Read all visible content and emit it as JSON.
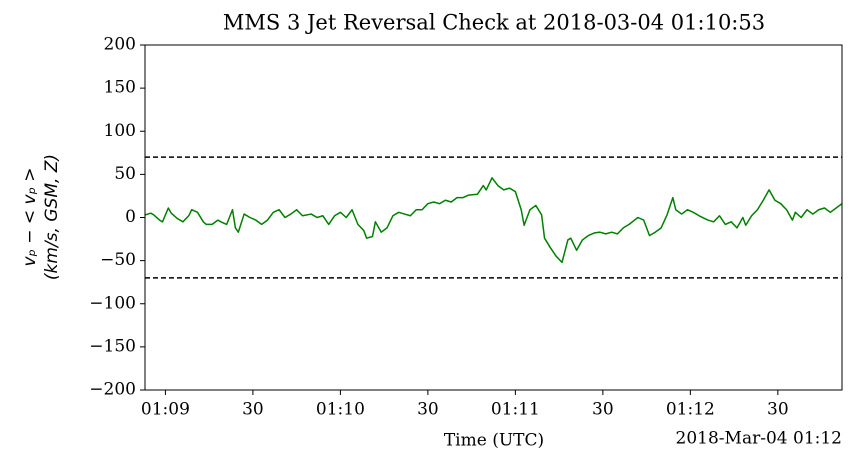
{
  "chart_data": {
    "type": "line",
    "title": "MMS 3 Jet Reversal Check at 2018-03-04 01:10:53",
    "xlabel": "Time (UTC)",
    "ylabel": [
      "vₚ − < vₚ >",
      "(km/s, GSM, Z)"
    ],
    "x_offset_label": "2018-Mar-04 01:12",
    "xlim": [
      "01:08:53",
      "01:12:52"
    ],
    "xticks": [
      {
        "value": "01:09:00",
        "label": "01:09"
      },
      {
        "value": "01:09:30",
        "label": "30"
      },
      {
        "value": "01:10:00",
        "label": "01:10"
      },
      {
        "value": "01:10:30",
        "label": "30"
      },
      {
        "value": "01:11:00",
        "label": "01:11"
      },
      {
        "value": "01:11:30",
        "label": "30"
      },
      {
        "value": "01:12:00",
        "label": "01:12"
      },
      {
        "value": "01:12:30",
        "label": "30"
      }
    ],
    "ylim": [
      -200,
      200
    ],
    "yticks": [
      {
        "value": -200,
        "label": "−200"
      },
      {
        "value": -150,
        "label": "−150"
      },
      {
        "value": -100,
        "label": "−100"
      },
      {
        "value": -50,
        "label": "−50"
      },
      0,
      50,
      100,
      150,
      200
    ],
    "hlines": [
      70,
      -70
    ],
    "grid": false,
    "x": [
      "01:08:53",
      "01:08:55",
      "01:08:56",
      "01:08:58",
      "01:08:59",
      "01:09:01",
      "01:09:02",
      "01:09:04",
      "01:09:06",
      "01:09:08",
      "01:09:09",
      "01:09:11",
      "01:09:13",
      "01:09:14",
      "01:09:16",
      "01:09:18",
      "01:09:19",
      "01:09:21",
      "01:09:23",
      "01:09:24",
      "01:09:25",
      "01:09:27",
      "01:09:29",
      "01:09:31",
      "01:09:33",
      "01:09:35",
      "01:09:37",
      "01:09:39",
      "01:09:41",
      "01:09:43",
      "01:09:45",
      "01:09:47",
      "01:09:50",
      "01:09:52",
      "01:09:54",
      "01:09:56",
      "01:09:58",
      "01:10:00",
      "01:10:02",
      "01:10:04",
      "01:10:06",
      "01:10:08",
      "01:10:09",
      "01:10:11",
      "01:10:12",
      "01:10:14",
      "01:10:16",
      "01:10:18",
      "01:10:20",
      "01:10:22",
      "01:10:24",
      "01:10:26",
      "01:10:28",
      "01:10:30",
      "01:10:32",
      "01:10:34",
      "01:10:36",
      "01:10:38",
      "01:10:40",
      "01:10:42",
      "01:10:44",
      "01:10:47",
      "01:10:49",
      "01:10:50",
      "01:10:52",
      "01:10:54",
      "01:10:56",
      "01:10:58",
      "01:11:00",
      "01:11:02",
      "01:11:03",
      "01:11:05",
      "01:11:07",
      "01:11:09",
      "01:11:10",
      "01:11:12",
      "01:11:14",
      "01:11:16",
      "01:11:18",
      "01:11:19",
      "01:11:21",
      "01:11:23",
      "01:11:25",
      "01:11:27",
      "01:11:29",
      "01:11:31",
      "01:11:33",
      "01:11:35",
      "01:11:37",
      "01:11:39",
      "01:11:42",
      "01:11:44",
      "01:11:46",
      "01:11:48",
      "01:11:50",
      "01:11:52",
      "01:11:54",
      "01:11:55",
      "01:11:57",
      "01:11:59",
      "01:12:01",
      "01:12:03",
      "01:12:06",
      "01:12:08",
      "01:12:10",
      "01:12:12",
      "01:12:14",
      "01:12:16",
      "01:12:18",
      "01:12:19",
      "01:12:21",
      "01:12:23",
      "01:12:25",
      "01:12:27",
      "01:12:29",
      "01:12:31",
      "01:12:33",
      "01:12:35",
      "01:12:36",
      "01:12:38",
      "01:12:40",
      "01:12:42",
      "01:12:44",
      "01:12:46",
      "01:12:48",
      "01:12:50",
      "01:12:52"
    ],
    "series": [
      {
        "name": "vp",
        "color": "#008000",
        "values": [
          3,
          5,
          3,
          -3,
          -5,
          11,
          5,
          -1,
          -5,
          2,
          9,
          6,
          -5,
          -8,
          -8,
          -3,
          -5,
          -8,
          9,
          -12,
          -17,
          4,
          0,
          -3,
          -8,
          -3,
          6,
          9,
          0,
          4,
          9,
          2,
          4,
          0,
          2,
          -8,
          2,
          6,
          0,
          9,
          -8,
          -15,
          -24,
          -22,
          -5,
          -17,
          -12,
          2,
          6,
          4,
          2,
          9,
          9,
          16,
          18,
          16,
          20,
          18,
          23,
          23,
          26,
          27,
          37,
          32,
          46,
          37,
          32,
          34,
          30,
          9,
          -9,
          9,
          14,
          3,
          -24,
          -35,
          -45,
          -52,
          -26,
          -24,
          -38,
          -26,
          -21,
          -18,
          -17,
          -19,
          -17,
          -19,
          -12,
          -8,
          0,
          -3,
          -21,
          -17,
          -12,
          3,
          23,
          9,
          4,
          9,
          6,
          2,
          -3,
          -5,
          2,
          -8,
          -5,
          -12,
          0,
          -9,
          2,
          9,
          20,
          32,
          20,
          16,
          9,
          -3,
          6,
          0,
          9,
          4,
          9,
          11,
          6,
          11,
          16
        ]
      }
    ]
  }
}
